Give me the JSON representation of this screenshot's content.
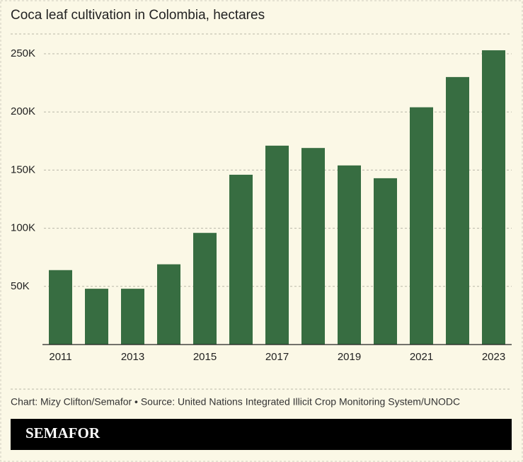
{
  "chart_data": {
    "type": "bar",
    "title": "Coca leaf cultivation in Colombia, hectares",
    "categories": [
      "2011",
      null,
      "2013",
      null,
      "2015",
      null,
      "2017",
      null,
      "2019",
      null,
      "2021",
      null,
      "2023"
    ],
    "values": [
      64000,
      48000,
      48000,
      69000,
      96000,
      146000,
      171000,
      169000,
      154000,
      143000,
      204000,
      230000,
      253000
    ],
    "color": "#376d41",
    "ylim": [
      0,
      265000
    ],
    "yticks": [
      {
        "value": 50000,
        "label": "50K"
      },
      {
        "value": 100000,
        "label": "100K"
      },
      {
        "value": 150000,
        "label": "150K"
      },
      {
        "value": 200000,
        "label": "200K"
      },
      {
        "value": 250000,
        "label": "250K"
      }
    ],
    "grid": true,
    "source": "Chart: Mizy Clifton/Semafor • Source: United Nations Integrated Illicit Crop Monitoring System/UNODC"
  },
  "brand": "SEMAFOR"
}
